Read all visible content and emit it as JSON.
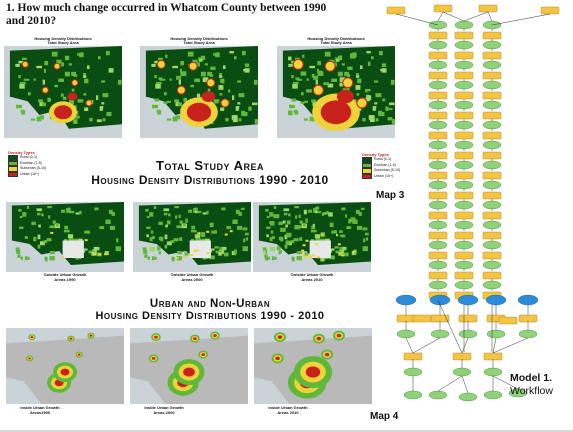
{
  "heading": "1. How much change occurred in Whatcom County between 1990 and 2010?",
  "top_maps": [
    {
      "title": "Housing Density Distributions\nTotal Study Area\n1990"
    },
    {
      "title": "Housing Density Distributions\nTotal Study Area\n2000"
    },
    {
      "title": "Housing Density Distributions\nTotal Study Area\n2010"
    }
  ],
  "title_total": [
    "Total Study Area",
    "Housing Density Distributions 1990 - 2010"
  ],
  "title_urban": [
    "Urban and Non-Urban",
    "Housing Density Distributions 1990 - 2010"
  ],
  "legend_title": "Density Types",
  "density_types": [
    {
      "label": "Rural (0-1)",
      "color": "#0a4d12"
    },
    {
      "label": "Exurban (1-5)",
      "color": "#5fb83a"
    },
    {
      "label": "Suburban (5-10)",
      "color": "#f0d23a"
    },
    {
      "label": "Urban (10+)",
      "color": "#c8221c"
    }
  ],
  "outside_captions": [
    "Outside Urban Growth\nAreas 1990",
    "Outside Urban Growth\nAreas 2000",
    "Outside Urban Growth\nAreas 2010"
  ],
  "inside_captions": [
    "Inside Urban Growth\nAreas1990",
    "Inside Urban Growth\nAreas 2000",
    "Inside Urban Growth\nAreas 2010"
  ],
  "map3_label": "Map 3",
  "map4_label": "Map 4",
  "model_label": "Model 1.",
  "workflow_label": "Workflow",
  "colors": {
    "rural": "#0a4d12",
    "exurban": "#5fb83a",
    "suburban": "#f0d23a",
    "urban": "#c8221c",
    "water": "#c9d3d8",
    "flow_yellow": "#f4c542",
    "flow_green": "#8fd27a",
    "flow_blue": "#2e8bd8"
  }
}
